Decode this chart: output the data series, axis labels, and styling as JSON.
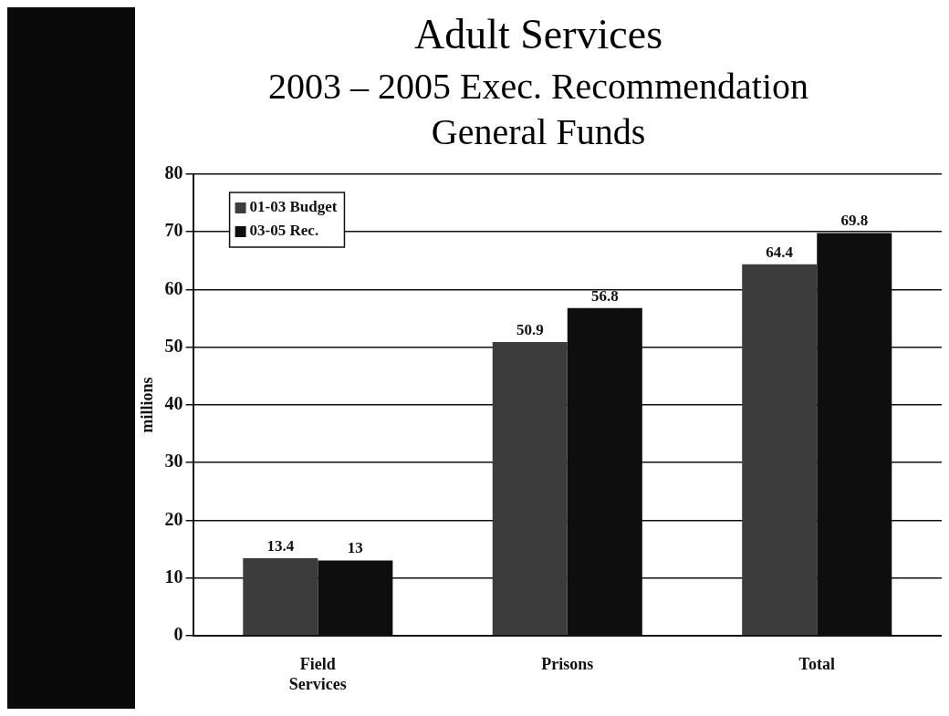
{
  "chart_data": {
    "type": "bar",
    "title": "Adult Services",
    "subtitle": "2003 – 2005 Exec. Recommendation General Funds",
    "ylabel": "millions",
    "categories": [
      "Field Services",
      "Prisons",
      "Total"
    ],
    "series": [
      {
        "name": "01-03 Budget",
        "color": "#3c3c3c",
        "values": [
          13.4,
          50.9,
          64.4
        ]
      },
      {
        "name": "03-05 Rec.",
        "color": "#0e0e0e",
        "values": [
          13,
          56.8,
          69.8
        ]
      }
    ],
    "ylim": [
      0,
      80
    ],
    "yticks": [
      0,
      10,
      20,
      30,
      40,
      50,
      60,
      70,
      80
    ],
    "grid": "y",
    "legend": "top left",
    "data_labels": true
  }
}
